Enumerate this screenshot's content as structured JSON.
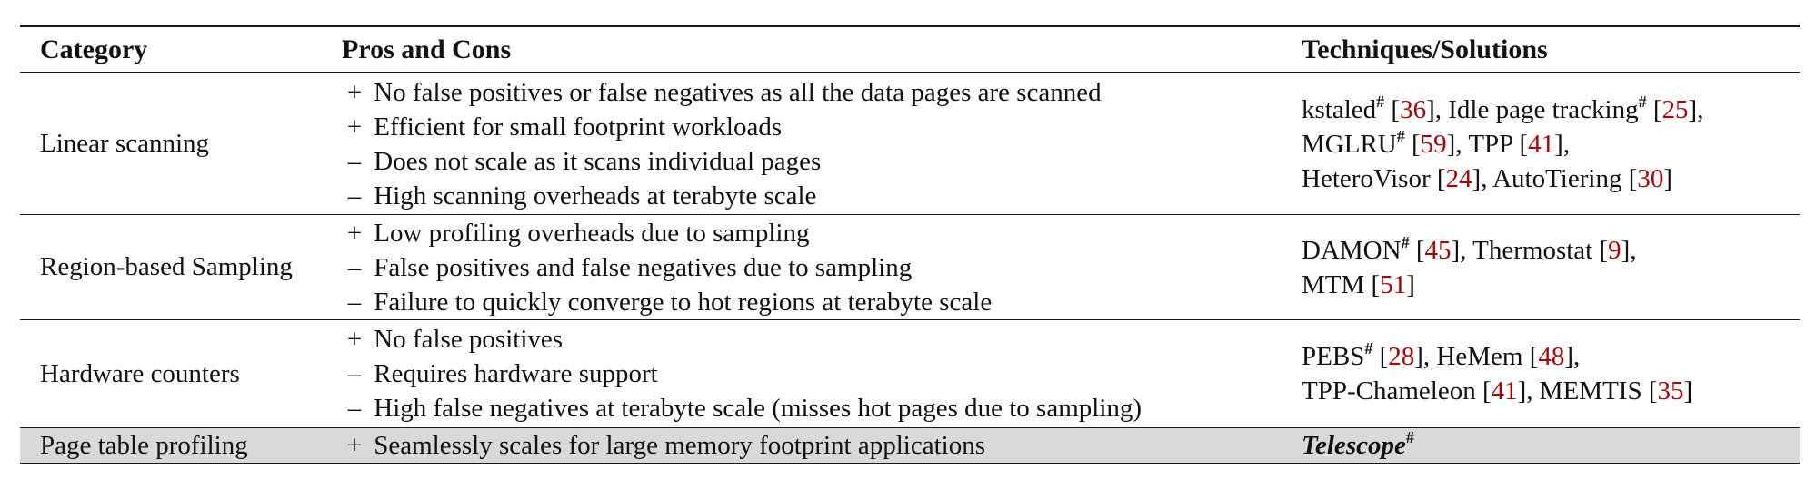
{
  "header": {
    "category": "Category",
    "pros_cons": "Pros and Cons",
    "techniques": "Techniques/Solutions"
  },
  "rows": [
    {
      "category": "Linear scanning",
      "points": [
        {
          "sign": "+",
          "text": "No false positives or false negatives as all the data pages are scanned"
        },
        {
          "sign": "+",
          "text": "Efficient for small footprint workloads"
        },
        {
          "sign": "–",
          "text": "Does not scale as it scans individual pages"
        },
        {
          "sign": "–",
          "text": "High scanning overheads at terabyte scale"
        }
      ],
      "tech_lines": [
        [
          {
            "name": "kstaled",
            "mark": "#",
            "ref": "36",
            "sep": ", "
          },
          {
            "name": "Idle page tracking",
            "mark": "#",
            "ref": "25",
            "sep": ","
          }
        ],
        [
          {
            "name": "MGLRU",
            "mark": "#",
            "ref": "59",
            "sep": ", "
          },
          {
            "name": "TPP",
            "mark": "",
            "ref": "41",
            "sep": ","
          }
        ],
        [
          {
            "name": "HeteroVisor",
            "mark": "",
            "ref": "24",
            "sep": ", "
          },
          {
            "name": "AutoTiering",
            "mark": "",
            "ref": "30",
            "sep": ""
          }
        ]
      ]
    },
    {
      "category": "Region-based Sampling",
      "points": [
        {
          "sign": "+",
          "text": "Low profiling overheads due to sampling"
        },
        {
          "sign": "–",
          "text": "False positives and false negatives due to sampling"
        },
        {
          "sign": "–",
          "text": "Failure to quickly converge to hot regions at terabyte scale"
        }
      ],
      "tech_lines": [
        [
          {
            "name": "DAMON",
            "mark": "#",
            "ref": "45",
            "sep": ", "
          },
          {
            "name": "Thermostat",
            "mark": "",
            "ref": "9",
            "sep": ","
          }
        ],
        [
          {
            "name": "MTM",
            "mark": "",
            "ref": "51",
            "sep": ""
          }
        ]
      ]
    },
    {
      "category": "Hardware counters",
      "points": [
        {
          "sign": "+",
          "text": "No false positives"
        },
        {
          "sign": "–",
          "text": "Requires hardware support"
        },
        {
          "sign": "–",
          "text": "High false negatives at terabyte scale (misses hot pages due to sampling)"
        }
      ],
      "tech_lines": [
        [
          {
            "name": "PEBS",
            "mark": "#",
            "ref": "28",
            "sep": ", "
          },
          {
            "name": "HeMem",
            "mark": "",
            "ref": "48",
            "sep": ","
          }
        ],
        [
          {
            "name": "TPP-Chameleon",
            "mark": "",
            "ref": "41",
            "sep": ", "
          },
          {
            "name": "MEMTIS",
            "mark": "",
            "ref": "35",
            "sep": ""
          }
        ]
      ]
    },
    {
      "category": "Page table profiling",
      "points": [
        {
          "sign": "+",
          "text": "Seamlessly scales for large memory footprint applications"
        }
      ],
      "telescope": {
        "name": "Telescope",
        "mark": "#"
      }
    }
  ]
}
